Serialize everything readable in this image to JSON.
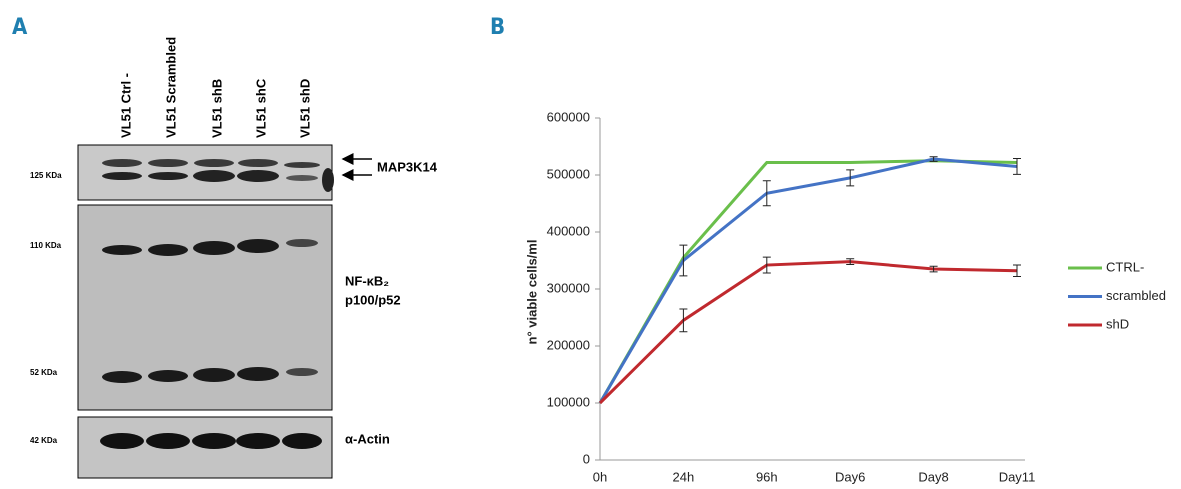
{
  "panel_a": {
    "label": "A",
    "lanes": [
      "VL51 Ctrl -",
      "VL51 Scrambled",
      "VL51 shB",
      "VL51 shC",
      "VL51 shD"
    ],
    "kda": [
      "125 KDa",
      "110 KDa",
      "52 KDa",
      "42 KDa"
    ],
    "proteins": [
      "MAP3K14",
      "NF-κB₂",
      "p100/p52",
      "α-Actin"
    ]
  },
  "panel_b_label": "B",
  "chart_data": {
    "type": "line",
    "y_label": "n° viable cells/ml",
    "categories": [
      "0h",
      "24h",
      "96h",
      "Day6",
      "Day8",
      "Day11"
    ],
    "ylim": [
      0,
      600000
    ],
    "yticks": [
      0,
      100000,
      200000,
      300000,
      400000,
      500000,
      600000
    ],
    "legend": "right",
    "series": [
      {
        "name": "CTRL-",
        "color": "#6abf4b",
        "values": [
          100000,
          355000,
          522000,
          522000,
          525000,
          522000
        ]
      },
      {
        "name": "scrambled",
        "color": "#4473c5",
        "values": [
          100000,
          350000,
          468000,
          495000,
          528000,
          515000
        ],
        "errors": [
          0,
          27000,
          22000,
          14000,
          4000,
          14000
        ]
      },
      {
        "name": "shD",
        "color": "#c0292e",
        "values": [
          100000,
          245000,
          342000,
          348000,
          335000,
          332000
        ],
        "errors": [
          0,
          20000,
          14000,
          5000,
          5000,
          10000
        ]
      }
    ]
  }
}
